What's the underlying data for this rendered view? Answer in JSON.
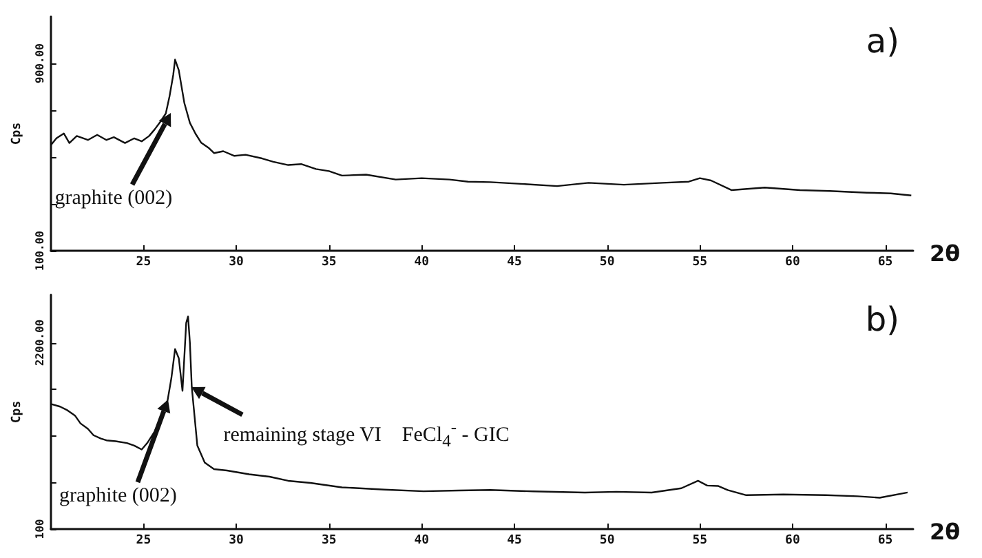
{
  "chart_data": [
    {
      "type": "line",
      "xlabel": "2θ",
      "ylabel": "Cps",
      "marker": "none",
      "xlim": [
        20,
        66.5
      ],
      "xticks": [
        25,
        30,
        35,
        40,
        45,
        50,
        55,
        60,
        65
      ],
      "ylim": [
        100,
        1100
      ],
      "yticks": [
        {
          "value": 100,
          "label": "100.00"
        },
        {
          "value": 300,
          "label": null
        },
        {
          "value": 500,
          "label": null
        },
        {
          "value": 700,
          "label": null
        },
        {
          "value": 900,
          "label": "900.00"
        }
      ],
      "series": [
        {
          "color": "#111111",
          "x": [
            20.0,
            20.3,
            20.7,
            21.0,
            21.4,
            22.0,
            22.5,
            23.0,
            23.4,
            24.0,
            24.5,
            24.9,
            25.3,
            25.6,
            25.9,
            26.2,
            26.4,
            26.6,
            26.7,
            26.9,
            27.2,
            27.5,
            27.8,
            28.1,
            28.5,
            28.8,
            29.3,
            29.9,
            30.5,
            31.4,
            32.0,
            32.8,
            33.5,
            34.3,
            35.0,
            35.7,
            37.0,
            38.6,
            40.0,
            41.5,
            42.5,
            43.7,
            45.5,
            47.3,
            49.0,
            50.9,
            53.0,
            54.4,
            55.0,
            55.6,
            56.7,
            58.5,
            60.4,
            62.0,
            64.0,
            65.3,
            66.4
          ],
          "values": [
            551,
            580,
            601,
            560,
            590,
            573,
            595,
            573,
            585,
            560,
            580,
            567,
            590,
            618,
            650,
            686,
            759,
            850,
            916,
            871,
            731,
            646,
            600,
            562,
            540,
            517,
            525,
            505,
            510,
            494,
            480,
            466,
            470,
            449,
            440,
            421,
            425,
            404,
            410,
            404,
            395,
            393,
            385,
            376,
            390,
            382,
            390,
            395,
            410,
            400,
            359,
            370,
            359,
            355,
            348,
            345,
            336
          ]
        }
      ],
      "annotations": [
        "a)",
        {
          "text": "graphite (002)",
          "x": 26.5,
          "y": 686
        }
      ]
    },
    {
      "type": "line",
      "xlabel": "2θ",
      "ylabel": "Cps",
      "marker": "none",
      "xlim": [
        20,
        66.5
      ],
      "xticks": [
        25,
        30,
        35,
        40,
        45,
        50,
        55,
        60,
        65
      ],
      "ylim": [
        100,
        2740
      ],
      "yticks": [
        {
          "value": 100,
          "label": "100"
        },
        {
          "value": 625,
          "label": null
        },
        {
          "value": 1150,
          "label": null
        },
        {
          "value": 1675,
          "label": null
        },
        {
          "value": 2200,
          "label": "2200.00"
        }
      ],
      "series": [
        {
          "color": "#111111",
          "x": [
            20.0,
            20.5,
            20.9,
            21.3,
            21.6,
            22.0,
            22.3,
            22.7,
            23.0,
            23.5,
            24.1,
            24.5,
            24.9,
            25.2,
            25.6,
            25.9,
            26.3,
            26.5,
            26.7,
            26.9,
            27.1,
            27.3,
            27.4,
            27.5,
            27.6,
            27.9,
            28.3,
            28.8,
            29.5,
            30.7,
            31.8,
            32.8,
            34.0,
            35.7,
            38.0,
            40.1,
            42.0,
            43.7,
            46.0,
            48.8,
            50.5,
            52.4,
            54.0,
            54.9,
            55.4,
            56.0,
            56.5,
            57.5,
            59.5,
            61.8,
            63.5,
            64.7,
            66.2
          ],
          "values": [
            1511,
            1480,
            1438,
            1380,
            1291,
            1230,
            1158,
            1120,
            1100,
            1090,
            1070,
            1040,
            997,
            1070,
            1200,
            1335,
            1555,
            1800,
            2129,
            2026,
            1658,
            2423,
            2496,
            2200,
            1702,
            1041,
            850,
            776,
            760,
            717,
            690,
            644,
            620,
            570,
            545,
            526,
            535,
            541,
            525,
            512,
            520,
            512,
            560,
            644,
            590,
            585,
            540,
            482,
            490,
            482,
            470,
            453,
            512
          ]
        }
      ],
      "annotations": [
        "b)",
        {
          "text": "graphite (002)",
          "x": 26.3,
          "y": 1555
        },
        {
          "text": "remaining stage VI    FeCl$_{4}$$^{-}$ - GIC",
          "x": 27.6,
          "y": 1702
        }
      ]
    }
  ]
}
